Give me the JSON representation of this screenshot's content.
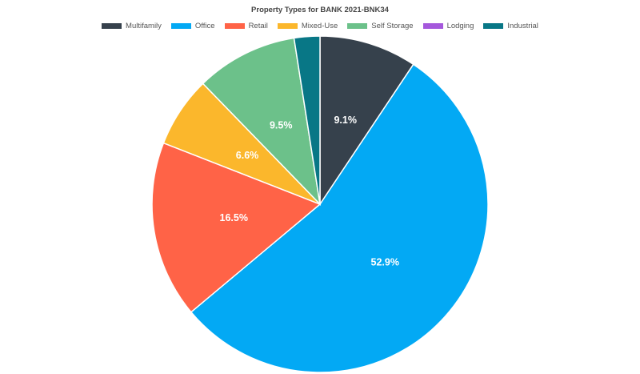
{
  "chart_data": {
    "type": "pie",
    "title": "Property Types for BANK 2021-BNK34",
    "slices": [
      {
        "label": "Multifamily",
        "value": 9.1,
        "display": "9.1%",
        "color": "#36414c"
      },
      {
        "label": "Office",
        "value": 52.9,
        "display": "52.9%",
        "color": "#03a9f4"
      },
      {
        "label": "Retail",
        "value": 16.5,
        "display": "16.5%",
        "color": "#ff6347"
      },
      {
        "label": "Mixed-Use",
        "value": 6.6,
        "display": "6.6%",
        "color": "#fbb72c"
      },
      {
        "label": "Self Storage",
        "value": 9.5,
        "display": "9.5%",
        "color": "#6cc18a"
      },
      {
        "label": "Lodging",
        "value": 0.0,
        "display": "",
        "color": "#a558dc"
      },
      {
        "label": "Industrial",
        "value": 2.4,
        "display": "",
        "color": "#087786"
      }
    ],
    "legend_position": "top"
  }
}
